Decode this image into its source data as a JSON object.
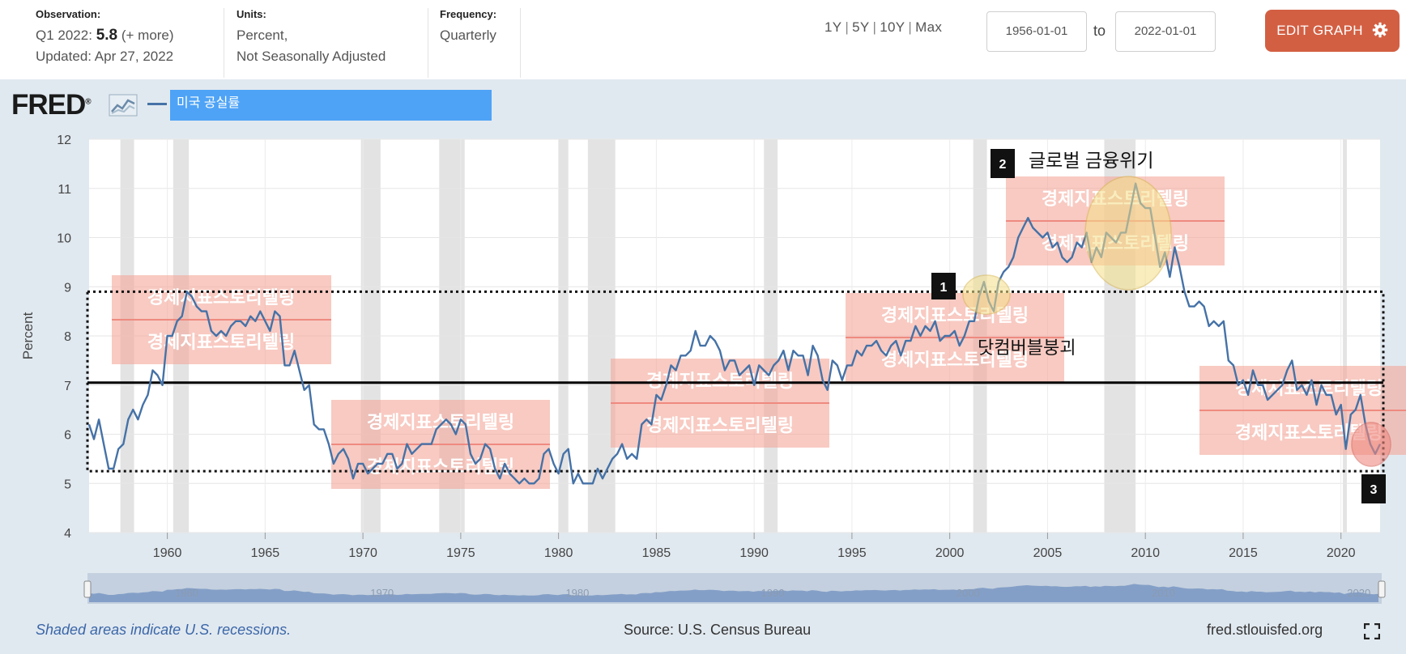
{
  "header": {
    "observation": {
      "label": "Observation:",
      "prefix": "Q1 2022:",
      "value": "5.8",
      "more": "(+ more)",
      "updated": "Updated: Apr 27, 2022"
    },
    "units": {
      "label": "Units:",
      "line1": "Percent,",
      "line2": "Not Seasonally Adjusted"
    },
    "frequency": {
      "label": "Frequency:",
      "value": "Quarterly"
    },
    "ranges": [
      "1Y",
      "5Y",
      "10Y",
      "Max"
    ],
    "start_date": "1956-01-01",
    "to_label": "to",
    "end_date": "2022-01-01",
    "edit_button": "EDIT GRAPH"
  },
  "logo": {
    "text": "FRED",
    "registered": "®"
  },
  "legend": {
    "series": "미국 공실률",
    "line_color": "#4572a7",
    "box_color": "#4ea3f6"
  },
  "annotations": {
    "watermark": "경제지표스토리텔링",
    "markers": [
      {
        "num": "1",
        "label": "닷컴버블붕괴"
      },
      {
        "num": "2",
        "label": "글로벌 금융위기"
      },
      {
        "num": "3",
        "label": ""
      }
    ],
    "reference_level": 7.05,
    "band": [
      5.25,
      8.9
    ]
  },
  "chart_data": {
    "type": "line",
    "title": "",
    "xlabel": "",
    "ylabel": "Percent",
    "ylim": [
      4,
      12
    ],
    "xlim": [
      1956,
      2022
    ],
    "yticks": [
      4,
      5,
      6,
      7,
      8,
      9,
      10,
      11,
      12
    ],
    "xticks": [
      1960,
      1965,
      1970,
      1975,
      1980,
      1985,
      1990,
      1995,
      2000,
      2005,
      2010,
      2015,
      2020
    ],
    "grid": true,
    "series": [
      {
        "name": "미국 공실률",
        "points": [
          [
            1956.0,
            6.2
          ],
          [
            1956.25,
            5.9
          ],
          [
            1956.5,
            6.3
          ],
          [
            1956.75,
            5.8
          ],
          [
            1957.0,
            5.3
          ],
          [
            1957.25,
            5.3
          ],
          [
            1957.5,
            5.7
          ],
          [
            1957.75,
            5.8
          ],
          [
            1958.0,
            6.3
          ],
          [
            1958.25,
            6.5
          ],
          [
            1958.5,
            6.3
          ],
          [
            1958.75,
            6.6
          ],
          [
            1959.0,
            6.8
          ],
          [
            1959.25,
            7.3
          ],
          [
            1959.5,
            7.2
          ],
          [
            1959.75,
            7.0
          ],
          [
            1960.0,
            8.0
          ],
          [
            1960.25,
            8.0
          ],
          [
            1960.5,
            8.3
          ],
          [
            1960.75,
            8.4
          ],
          [
            1961.0,
            8.9
          ],
          [
            1961.25,
            8.8
          ],
          [
            1961.5,
            8.6
          ],
          [
            1961.75,
            8.5
          ],
          [
            1962.0,
            8.5
          ],
          [
            1962.25,
            8.1
          ],
          [
            1962.5,
            8.0
          ],
          [
            1962.75,
            8.1
          ],
          [
            1963.0,
            8.0
          ],
          [
            1963.25,
            8.2
          ],
          [
            1963.5,
            8.3
          ],
          [
            1963.75,
            8.3
          ],
          [
            1964.0,
            8.2
          ],
          [
            1964.25,
            8.4
          ],
          [
            1964.5,
            8.3
          ],
          [
            1964.75,
            8.5
          ],
          [
            1965.0,
            8.3
          ],
          [
            1965.25,
            8.1
          ],
          [
            1965.5,
            8.5
          ],
          [
            1965.75,
            8.4
          ],
          [
            1966.0,
            7.4
          ],
          [
            1966.25,
            7.4
          ],
          [
            1966.5,
            7.7
          ],
          [
            1966.75,
            7.3
          ],
          [
            1967.0,
            6.9
          ],
          [
            1967.25,
            7.0
          ],
          [
            1967.5,
            6.2
          ],
          [
            1967.75,
            6.1
          ],
          [
            1968.0,
            6.1
          ],
          [
            1968.25,
            5.8
          ],
          [
            1968.5,
            5.4
          ],
          [
            1968.75,
            5.6
          ],
          [
            1969.0,
            5.7
          ],
          [
            1969.25,
            5.5
          ],
          [
            1969.5,
            5.1
          ],
          [
            1969.75,
            5.4
          ],
          [
            1970.0,
            5.4
          ],
          [
            1970.25,
            5.2
          ],
          [
            1970.5,
            5.3
          ],
          [
            1970.75,
            5.4
          ],
          [
            1971.0,
            5.4
          ],
          [
            1971.25,
            5.6
          ],
          [
            1971.5,
            5.6
          ],
          [
            1971.75,
            5.3
          ],
          [
            1972.0,
            5.4
          ],
          [
            1972.25,
            5.8
          ],
          [
            1972.5,
            5.6
          ],
          [
            1972.75,
            5.7
          ],
          [
            1973.0,
            5.8
          ],
          [
            1973.25,
            5.8
          ],
          [
            1973.5,
            5.8
          ],
          [
            1973.75,
            6.1
          ],
          [
            1974.0,
            6.2
          ],
          [
            1974.25,
            6.3
          ],
          [
            1974.5,
            6.2
          ],
          [
            1974.75,
            6.0
          ],
          [
            1975.0,
            6.3
          ],
          [
            1975.25,
            6.2
          ],
          [
            1975.5,
            5.6
          ],
          [
            1975.75,
            5.4
          ],
          [
            1976.0,
            5.5
          ],
          [
            1976.25,
            5.8
          ],
          [
            1976.5,
            5.7
          ],
          [
            1976.75,
            5.3
          ],
          [
            1977.0,
            5.1
          ],
          [
            1977.25,
            5.4
          ],
          [
            1977.5,
            5.2
          ],
          [
            1977.75,
            5.1
          ],
          [
            1978.0,
            5.0
          ],
          [
            1978.25,
            5.1
          ],
          [
            1978.5,
            5.0
          ],
          [
            1978.75,
            5.0
          ],
          [
            1979.0,
            5.1
          ],
          [
            1979.25,
            5.6
          ],
          [
            1979.5,
            5.7
          ],
          [
            1979.75,
            5.4
          ],
          [
            1980.0,
            5.2
          ],
          [
            1980.25,
            5.6
          ],
          [
            1980.5,
            5.7
          ],
          [
            1980.75,
            5.0
          ],
          [
            1981.0,
            5.2
          ],
          [
            1981.25,
            5.0
          ],
          [
            1981.5,
            5.0
          ],
          [
            1981.75,
            5.0
          ],
          [
            1982.0,
            5.3
          ],
          [
            1982.25,
            5.1
          ],
          [
            1982.5,
            5.3
          ],
          [
            1982.75,
            5.5
          ],
          [
            1983.0,
            5.6
          ],
          [
            1983.25,
            5.8
          ],
          [
            1983.5,
            5.5
          ],
          [
            1983.75,
            5.6
          ],
          [
            1984.0,
            5.5
          ],
          [
            1984.25,
            6.2
          ],
          [
            1984.5,
            6.3
          ],
          [
            1984.75,
            6.2
          ],
          [
            1985.0,
            6.8
          ],
          [
            1985.25,
            6.7
          ],
          [
            1985.5,
            7.0
          ],
          [
            1985.75,
            7.4
          ],
          [
            1986.0,
            7.3
          ],
          [
            1986.25,
            7.6
          ],
          [
            1986.5,
            7.6
          ],
          [
            1986.75,
            7.7
          ],
          [
            1987.0,
            8.1
          ],
          [
            1987.25,
            7.8
          ],
          [
            1987.5,
            7.8
          ],
          [
            1987.75,
            8.0
          ],
          [
            1988.0,
            7.9
          ],
          [
            1988.25,
            7.7
          ],
          [
            1988.5,
            7.3
          ],
          [
            1988.75,
            7.5
          ],
          [
            1989.0,
            7.5
          ],
          [
            1989.25,
            7.2
          ],
          [
            1989.5,
            7.3
          ],
          [
            1989.75,
            7.4
          ],
          [
            1990.0,
            7.0
          ],
          [
            1990.25,
            7.4
          ],
          [
            1990.5,
            7.3
          ],
          [
            1990.75,
            7.2
          ],
          [
            1991.0,
            7.4
          ],
          [
            1991.25,
            7.5
          ],
          [
            1991.5,
            7.7
          ],
          [
            1991.75,
            7.3
          ],
          [
            1992.0,
            7.7
          ],
          [
            1992.25,
            7.6
          ],
          [
            1992.5,
            7.6
          ],
          [
            1992.75,
            7.2
          ],
          [
            1993.0,
            7.8
          ],
          [
            1993.25,
            7.6
          ],
          [
            1993.5,
            7.1
          ],
          [
            1993.75,
            6.9
          ],
          [
            1994.0,
            7.5
          ],
          [
            1994.25,
            7.4
          ],
          [
            1994.5,
            7.1
          ],
          [
            1994.75,
            7.4
          ],
          [
            1995.0,
            7.4
          ],
          [
            1995.25,
            7.7
          ],
          [
            1995.5,
            7.6
          ],
          [
            1995.75,
            7.8
          ],
          [
            1996.0,
            7.8
          ],
          [
            1996.25,
            7.9
          ],
          [
            1996.5,
            7.7
          ],
          [
            1996.75,
            7.6
          ],
          [
            1997.0,
            7.8
          ],
          [
            1997.25,
            7.9
          ],
          [
            1997.5,
            7.6
          ],
          [
            1997.75,
            7.9
          ],
          [
            1998.0,
            7.9
          ],
          [
            1998.25,
            8.2
          ],
          [
            1998.5,
            8.0
          ],
          [
            1998.75,
            8.2
          ],
          [
            1999.0,
            8.1
          ],
          [
            1999.25,
            8.3
          ],
          [
            1999.5,
            7.9
          ],
          [
            1999.75,
            8.0
          ],
          [
            2000.0,
            8.0
          ],
          [
            2000.25,
            8.1
          ],
          [
            2000.5,
            7.8
          ],
          [
            2000.75,
            8.0
          ],
          [
            2001.0,
            8.3
          ],
          [
            2001.25,
            8.3
          ],
          [
            2001.5,
            8.8
          ],
          [
            2001.75,
            9.1
          ],
          [
            2002.0,
            8.7
          ],
          [
            2002.25,
            8.5
          ],
          [
            2002.5,
            9.1
          ],
          [
            2002.75,
            9.3
          ],
          [
            2003.0,
            9.4
          ],
          [
            2003.25,
            9.6
          ],
          [
            2003.5,
            10.0
          ],
          [
            2003.75,
            10.2
          ],
          [
            2004.0,
            10.4
          ],
          [
            2004.25,
            10.2
          ],
          [
            2004.5,
            10.1
          ],
          [
            2004.75,
            10.0
          ],
          [
            2005.0,
            10.1
          ],
          [
            2005.25,
            9.8
          ],
          [
            2005.5,
            9.9
          ],
          [
            2005.75,
            9.6
          ],
          [
            2006.0,
            9.5
          ],
          [
            2006.25,
            9.6
          ],
          [
            2006.5,
            9.9
          ],
          [
            2006.75,
            9.8
          ],
          [
            2007.0,
            10.1
          ],
          [
            2007.25,
            9.5
          ],
          [
            2007.5,
            9.8
          ],
          [
            2007.75,
            9.6
          ],
          [
            2008.0,
            10.1
          ],
          [
            2008.25,
            10.0
          ],
          [
            2008.5,
            9.9
          ],
          [
            2008.75,
            10.1
          ],
          [
            2009.0,
            10.1
          ],
          [
            2009.25,
            10.6
          ],
          [
            2009.5,
            11.1
          ],
          [
            2009.75,
            10.7
          ],
          [
            2010.0,
            10.6
          ],
          [
            2010.25,
            10.6
          ],
          [
            2010.5,
            10.0
          ],
          [
            2010.75,
            9.4
          ],
          [
            2011.0,
            9.7
          ],
          [
            2011.25,
            9.2
          ],
          [
            2011.5,
            9.8
          ],
          [
            2011.75,
            9.4
          ],
          [
            2012.0,
            8.9
          ],
          [
            2012.25,
            8.6
          ],
          [
            2012.5,
            8.6
          ],
          [
            2012.75,
            8.7
          ],
          [
            2013.0,
            8.6
          ],
          [
            2013.25,
            8.2
          ],
          [
            2013.5,
            8.3
          ],
          [
            2013.75,
            8.2
          ],
          [
            2014.0,
            8.3
          ],
          [
            2014.25,
            7.5
          ],
          [
            2014.5,
            7.4
          ],
          [
            2014.75,
            7.0
          ],
          [
            2015.0,
            7.1
          ],
          [
            2015.25,
            6.8
          ],
          [
            2015.5,
            7.3
          ],
          [
            2015.75,
            7.0
          ],
          [
            2016.0,
            7.0
          ],
          [
            2016.25,
            6.7
          ],
          [
            2016.5,
            6.8
          ],
          [
            2016.75,
            6.9
          ],
          [
            2017.0,
            7.0
          ],
          [
            2017.25,
            7.3
          ],
          [
            2017.5,
            7.5
          ],
          [
            2017.75,
            6.9
          ],
          [
            2018.0,
            7.0
          ],
          [
            2018.25,
            6.8
          ],
          [
            2018.5,
            7.1
          ],
          [
            2018.75,
            6.6
          ],
          [
            2019.0,
            7.0
          ],
          [
            2019.25,
            6.8
          ],
          [
            2019.5,
            6.8
          ],
          [
            2019.75,
            6.4
          ],
          [
            2020.0,
            6.6
          ],
          [
            2020.25,
            5.7
          ],
          [
            2020.5,
            6.4
          ],
          [
            2020.75,
            6.5
          ],
          [
            2021.0,
            6.8
          ],
          [
            2021.25,
            6.2
          ],
          [
            2021.5,
            5.8
          ],
          [
            2021.75,
            5.6
          ],
          [
            2022.0,
            5.8
          ]
        ]
      }
    ],
    "recessions": [
      [
        1957.6,
        1958.3
      ],
      [
        1960.3,
        1961.1
      ],
      [
        1969.9,
        1970.9
      ],
      [
        1973.9,
        1975.2
      ],
      [
        1980.0,
        1980.5
      ],
      [
        1981.5,
        1982.9
      ],
      [
        1990.5,
        1991.2
      ],
      [
        2001.2,
        2001.9
      ],
      [
        2007.9,
        2009.5
      ],
      [
        2020.1,
        2020.3
      ]
    ],
    "footnote": "Shaded areas indicate U.S. recessions.",
    "source": "Source: U.S. Census Bureau",
    "site": "fred.stlouisfed.org",
    "navigator_years": [
      "1960",
      "1970",
      "1980",
      "1990",
      "2000",
      "2010",
      "2020"
    ]
  }
}
